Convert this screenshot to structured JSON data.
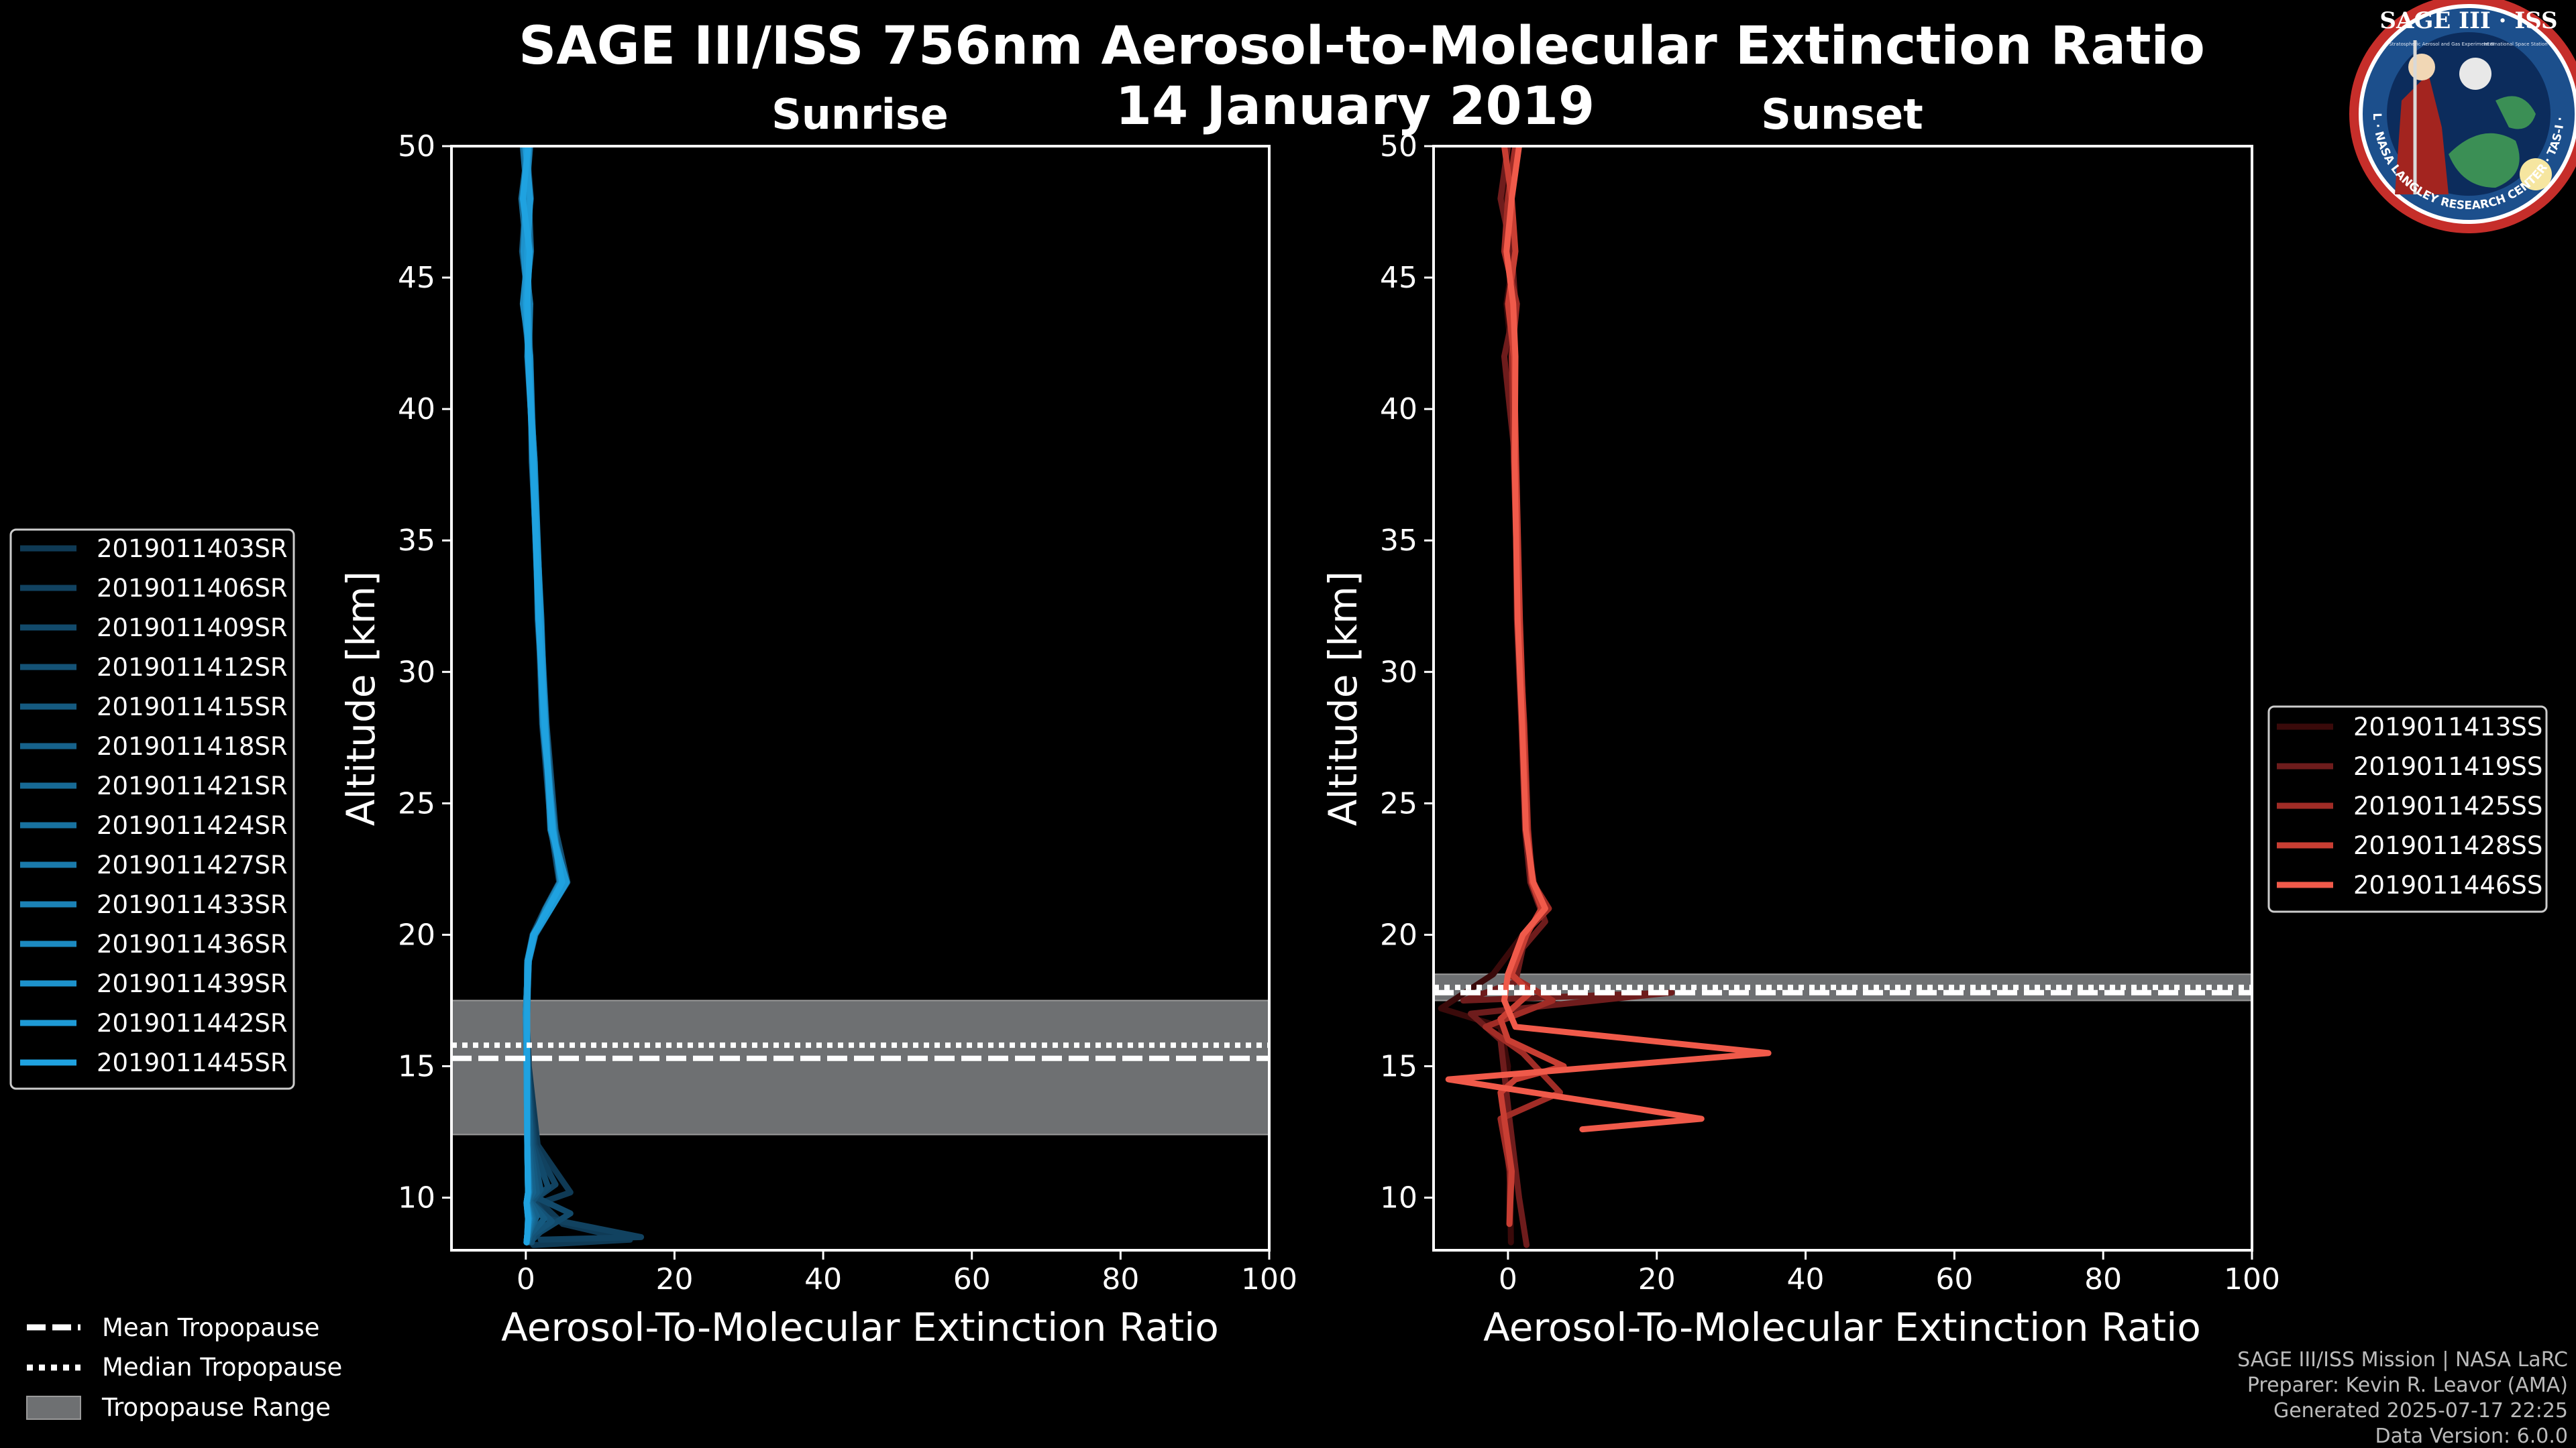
{
  "title": {
    "line1": "SAGE III/ISS 756nm Aerosol-to-Molecular Extinction Ratio",
    "line2": "14 January 2019"
  },
  "logo": {
    "name": "SAGE III · ISS",
    "ring_text": "BALL · NASA LANGLEY RESEARCH CENTER · TAS-I · ESA",
    "subtitle_left": "Stratospheric Aerosol and Gas Experiment III",
    "subtitle_right": "International Space Station"
  },
  "colors": {
    "background": "#000000",
    "tropopause_band": "#6e7072",
    "sunrise_lines": [
      "#0f3a55",
      "#114260",
      "#124a6b",
      "#145276",
      "#155a80",
      "#16628b",
      "#176a95",
      "#1872a0",
      "#1a7aab",
      "#1b82b6",
      "#1c8ac1",
      "#1d92cc",
      "#1e9ad6",
      "#1fa2e0"
    ],
    "sunset_lines": [
      "#3a0a0a",
      "#6e1c1c",
      "#a02c26",
      "#c83e33",
      "#f05a4a"
    ]
  },
  "chart_data": [
    {
      "type": "line",
      "title": "Sunrise",
      "xlabel": "Aerosol-To-Molecular Extinction Ratio",
      "ylabel": "Altitude [km]",
      "xlim": [
        -10,
        100
      ],
      "ylim": [
        8,
        50
      ],
      "xticks": [
        0,
        20,
        40,
        60,
        80,
        100
      ],
      "yticks": [
        10,
        15,
        20,
        25,
        30,
        35,
        40,
        45,
        50
      ],
      "tropopause": {
        "range": [
          12.4,
          17.5
        ],
        "mean": 15.3,
        "median": 15.8
      },
      "legend_location": "outside-left",
      "series": [
        {
          "name": "2019011403SR",
          "x": [
            0.3,
            -0.5,
            0.6,
            -0.2,
            0.4,
            1.0,
            1.8,
            2.6,
            3.8,
            4.8,
            2.9,
            1.0,
            0.2,
            0.1,
            0.4,
            1.6,
            6.0,
            2.0,
            5.0,
            14.0,
            1.0
          ],
          "y": [
            50,
            48,
            46,
            44,
            42,
            38,
            32,
            28,
            24,
            22,
            21,
            20,
            19,
            17,
            15,
            12,
            10.2,
            9.8,
            9.0,
            8.4,
            8.2
          ]
        },
        {
          "name": "2019011406SR",
          "x": [
            0.1,
            0.7,
            -0.4,
            0.3,
            0.6,
            1.1,
            1.9,
            2.4,
            3.6,
            5.2,
            3.2,
            1.2,
            0.3,
            0.0,
            0.3,
            1.2,
            4.0,
            1.0,
            3.0,
            15.5,
            2.0
          ],
          "y": [
            50,
            48,
            46,
            44,
            42,
            38,
            32,
            28,
            24,
            22,
            21,
            20,
            19,
            17,
            15,
            12,
            10.5,
            9.9,
            9.2,
            8.5,
            8.4
          ]
        },
        {
          "name": "2019011409SR",
          "x": [
            0.4,
            -0.3,
            0.5,
            0.0,
            0.5,
            0.9,
            1.7,
            2.2,
            3.4,
            4.5,
            2.6,
            0.9,
            0.2,
            0.1,
            0.2,
            1.0,
            3.0,
            1.5,
            6.0,
            2.0,
            0.5
          ],
          "y": [
            50,
            48,
            46,
            44,
            42,
            38,
            32,
            28,
            24,
            22,
            21,
            20,
            19,
            17,
            15,
            12,
            10.4,
            10.0,
            9.4,
            8.7,
            8.3
          ]
        },
        {
          "name": "2019011412SR",
          "x": [
            -0.2,
            0.6,
            0.2,
            -0.3,
            0.4,
            1.0,
            2.0,
            2.8,
            4.0,
            5.6,
            3.4,
            1.3,
            0.4,
            0.2,
            0.1,
            0.8,
            2.0,
            0.8,
            3.5,
            1.0,
            0.8
          ],
          "y": [
            50,
            48,
            46,
            44,
            42,
            38,
            32,
            28,
            24,
            22,
            21,
            20,
            19,
            17,
            15,
            12,
            10.3,
            9.8,
            9.1,
            8.6,
            8.3
          ]
        },
        {
          "name": "2019011415SR",
          "x": [
            0.6,
            0.0,
            -0.5,
            0.4,
            0.3,
            1.2,
            1.6,
            2.5,
            3.5,
            4.9,
            3.0,
            1.1,
            0.3,
            0.0,
            0.3,
            0.6,
            1.5,
            0.5,
            2.5,
            0.6,
            0.3
          ],
          "y": [
            50,
            48,
            46,
            44,
            42,
            38,
            32,
            28,
            24,
            22,
            21,
            20,
            19,
            17,
            15,
            12,
            10.2,
            9.9,
            9.2,
            8.6,
            8.3
          ]
        },
        {
          "name": "2019011418SR",
          "x": [
            0.0,
            0.4,
            0.7,
            -0.1,
            0.6,
            0.8,
            1.9,
            2.7,
            3.7,
            5.3,
            3.1,
            1.0,
            0.2,
            0.1,
            0.2,
            0.4,
            1.0,
            0.4,
            1.5,
            0.5,
            0.2
          ],
          "y": [
            50,
            48,
            46,
            44,
            42,
            38,
            32,
            28,
            24,
            22,
            21,
            20,
            19,
            17,
            15,
            12,
            10.2,
            9.9,
            9.3,
            8.7,
            8.3
          ]
        },
        {
          "name": "2019011421SR",
          "x": [
            0.3,
            -0.6,
            0.1,
            0.5,
            0.2,
            1.1,
            1.8,
            2.3,
            3.9,
            4.7,
            2.8,
            1.2,
            0.3,
            0.0,
            0.1,
            0.3,
            0.6,
            0.3,
            1.0,
            0.4,
            0.2
          ],
          "y": [
            50,
            48,
            46,
            44,
            42,
            38,
            32,
            28,
            24,
            22,
            21,
            20,
            19,
            17,
            15,
            12,
            10.3,
            9.9,
            9.2,
            8.6,
            8.3
          ]
        },
        {
          "name": "2019011424SR",
          "x": [
            -0.4,
            0.2,
            0.4,
            0.0,
            0.5,
            1.0,
            2.1,
            2.6,
            3.3,
            5.0,
            3.3,
            1.0,
            0.2,
            0.1,
            0.2,
            0.2,
            0.5,
            0.2,
            0.8,
            0.3,
            0.1
          ],
          "y": [
            50,
            48,
            46,
            44,
            42,
            38,
            32,
            28,
            24,
            22,
            21,
            20,
            19,
            17,
            15,
            12,
            10.2,
            9.8,
            9.2,
            8.6,
            8.3
          ]
        },
        {
          "name": "2019011427SR",
          "x": [
            0.5,
            0.1,
            -0.2,
            0.6,
            0.4,
            0.9,
            1.7,
            2.4,
            3.6,
            5.4,
            3.0,
            1.1,
            0.3,
            0.2,
            0.1,
            0.2,
            0.4,
            0.2,
            0.6,
            0.3,
            0.1
          ],
          "y": [
            50,
            48,
            46,
            44,
            42,
            38,
            32,
            28,
            24,
            22,
            21,
            20,
            19,
            17,
            15,
            12,
            10.2,
            9.8,
            9.2,
            8.6,
            8.3
          ]
        },
        {
          "name": "2019011433SR",
          "x": [
            0.2,
            -0.2,
            0.6,
            0.1,
            0.3,
            1.2,
            2.0,
            2.5,
            3.8,
            4.6,
            2.7,
            1.2,
            0.4,
            0.1,
            0.2,
            0.2,
            0.4,
            0.2,
            0.5,
            0.2,
            0.1
          ],
          "y": [
            50,
            48,
            46,
            44,
            42,
            38,
            32,
            28,
            24,
            22,
            21,
            20,
            19,
            17,
            15,
            12,
            10.2,
            9.8,
            9.2,
            8.6,
            8.3
          ]
        },
        {
          "name": "2019011436SR",
          "x": [
            -0.1,
            0.5,
            0.3,
            -0.4,
            0.6,
            1.0,
            1.9,
            2.7,
            3.5,
            5.1,
            3.2,
            1.0,
            0.2,
            0.1,
            0.1,
            0.2,
            0.3,
            0.2,
            0.4,
            0.2,
            0.1
          ],
          "y": [
            50,
            48,
            46,
            44,
            42,
            38,
            32,
            28,
            24,
            22,
            21,
            20,
            19,
            17,
            15,
            12,
            10.2,
            9.8,
            9.2,
            8.6,
            8.3
          ]
        },
        {
          "name": "2019011439SR",
          "x": [
            0.4,
            0.0,
            -0.3,
            0.3,
            0.5,
            0.9,
            1.8,
            2.3,
            3.7,
            4.8,
            2.9,
            1.1,
            0.3,
            0.0,
            0.2,
            0.2,
            0.3,
            0.1,
            0.4,
            0.2,
            0.1
          ],
          "y": [
            50,
            48,
            46,
            44,
            42,
            38,
            32,
            28,
            24,
            22,
            21,
            20,
            19,
            17,
            15,
            12,
            10.2,
            9.8,
            9.2,
            8.6,
            8.3
          ]
        },
        {
          "name": "2019011442SR",
          "x": [
            0.0,
            0.6,
            0.2,
            0.0,
            0.4,
            1.1,
            2.0,
            2.6,
            3.4,
            5.5,
            3.4,
            1.2,
            0.4,
            0.1,
            0.1,
            0.2,
            0.3,
            0.1,
            0.3,
            0.2,
            0.1
          ],
          "y": [
            50,
            48,
            46,
            44,
            42,
            38,
            32,
            28,
            24,
            22,
            21,
            20,
            19,
            17,
            15,
            12,
            10.2,
            9.8,
            9.2,
            8.6,
            8.3
          ]
        },
        {
          "name": "2019011445SR",
          "x": [
            0.3,
            -0.4,
            0.5,
            0.2,
            0.3,
            1.0,
            1.7,
            2.5,
            3.6,
            4.9,
            3.0,
            1.0,
            0.3,
            0.2,
            0.2,
            0.2,
            0.3,
            0.1,
            0.3,
            0.2,
            0.1
          ],
          "y": [
            50,
            48,
            46,
            44,
            42,
            38,
            32,
            28,
            24,
            22,
            21,
            20,
            19,
            17,
            15,
            12,
            10.2,
            9.8,
            9.2,
            8.6,
            8.3
          ]
        }
      ]
    },
    {
      "type": "line",
      "title": "Sunset",
      "xlabel": "Aerosol-To-Molecular Extinction Ratio",
      "ylabel": "Altitude [km]",
      "xlim": [
        -10,
        100
      ],
      "ylim": [
        8,
        50
      ],
      "xticks": [
        0,
        20,
        40,
        60,
        80,
        100
      ],
      "yticks": [
        10,
        15,
        20,
        25,
        30,
        35,
        40,
        45,
        50
      ],
      "tropopause": {
        "range": [
          17.5,
          18.5
        ],
        "mean": 17.8,
        "median": 18.0
      },
      "legend_location": "outside-right",
      "series": [
        {
          "name": "2019011413SS",
          "x": [
            1.0,
            -0.5,
            0.8,
            -0.2,
            0.5,
            0.9,
            1.5,
            2.0,
            2.5,
            3.5,
            5.0,
            2.0,
            -2.0,
            -9.0,
            -1.0,
            0.0,
            -0.5,
            0.3,
            0.4
          ],
          "y": [
            50,
            48,
            46,
            44,
            42,
            38,
            32,
            28,
            24,
            22,
            21,
            20,
            18.5,
            17.2,
            16.5,
            15,
            13,
            10.5,
            8.3
          ]
        },
        {
          "name": "2019011419SS",
          "x": [
            0.0,
            -1.0,
            0.5,
            1.0,
            -0.5,
            1.0,
            1.2,
            1.8,
            2.3,
            3.0,
            5.0,
            2.0,
            1.0,
            -6.0,
            22.0,
            -5.0,
            -1.0,
            0.2,
            1.5,
            2.5
          ],
          "y": [
            50,
            48,
            46,
            44,
            42,
            38,
            32,
            28,
            24,
            22,
            20.5,
            19.5,
            18.2,
            17.5,
            17.8,
            17.0,
            16.0,
            13.0,
            10.0,
            8.2
          ]
        },
        {
          "name": "2019011425SS",
          "x": [
            1.0,
            0.0,
            -0.5,
            1.2,
            0.5,
            0.8,
            1.4,
            2.2,
            2.7,
            3.3,
            5.5,
            2.0,
            0.0,
            6.0,
            -3.0,
            2.0,
            7.0,
            -1.0,
            0.3,
            0.2
          ],
          "y": [
            50,
            48,
            46,
            44,
            42,
            38,
            32,
            28,
            24,
            22,
            21,
            20,
            18.5,
            17.5,
            16.5,
            15.5,
            14.0,
            13.0,
            11.0,
            9.0
          ]
        },
        {
          "name": "2019011428SS",
          "x": [
            -0.5,
            0.5,
            1.0,
            0.0,
            0.8,
            1.1,
            1.6,
            2.1,
            2.6,
            3.2,
            4.5,
            2.5,
            0.5,
            3.0,
            -1.0,
            0.0,
            7.5,
            1.0,
            -1.0,
            0.5,
            0.2
          ],
          "y": [
            50,
            48,
            46,
            44,
            42,
            38,
            32,
            28,
            24,
            22,
            21,
            20,
            18.5,
            17.8,
            16.8,
            16.0,
            15.0,
            14.5,
            14.0,
            11.0,
            9.0
          ]
        },
        {
          "name": "2019011446SS",
          "x": [
            1.5,
            0.5,
            -0.2,
            0.7,
            1.0,
            0.9,
            1.3,
            1.9,
            2.4,
            3.4,
            5.0,
            2.0,
            0.0,
            -0.5,
            1.0,
            35.0,
            -8.0,
            26.0,
            10.0
          ],
          "y": [
            50,
            48,
            46,
            44,
            42,
            38,
            32,
            28,
            24,
            22,
            21,
            20,
            18.5,
            17.5,
            16.5,
            15.5,
            14.5,
            13.0,
            12.6
          ]
        }
      ]
    }
  ],
  "tropopause_legend": {
    "mean": "Mean Tropopause",
    "median": "Median Tropopause",
    "range": "Tropopause Range"
  },
  "footer": {
    "line1": "SAGE III/ISS Mission | NASA LaRC",
    "line2": "Preparer: Kevin R. Leavor (AMA)",
    "line3": "Generated 2025-07-17 22:25",
    "line4": "Data Version: 6.0.0"
  }
}
